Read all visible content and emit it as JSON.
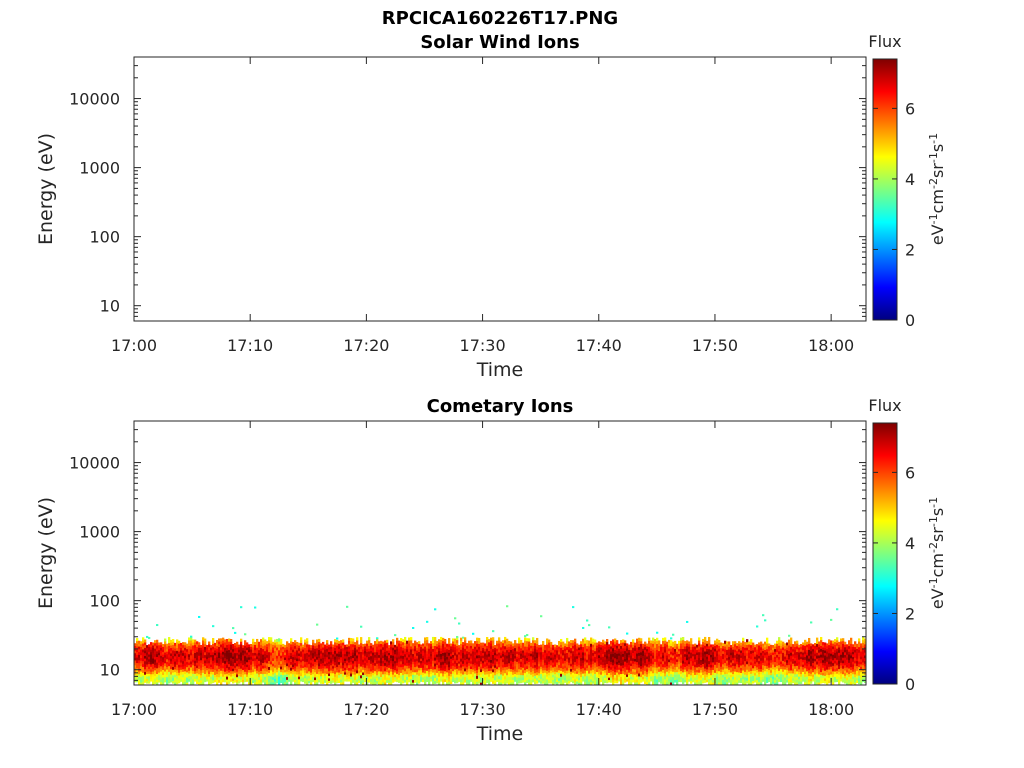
{
  "figure": {
    "title": "RPCICA160226T17.PNG"
  },
  "colormap": {
    "name": "jet",
    "stops": [
      "#00007f",
      "#0000ff",
      "#007fff",
      "#00ffff",
      "#7fff7f",
      "#ffff00",
      "#ff7f00",
      "#ff0000",
      "#7f0000"
    ]
  },
  "chart_data": [
    {
      "type": "heatmap",
      "title": "Solar Wind Ions",
      "xlabel": "Time",
      "ylabel": "Energy (eV)",
      "xlim": [
        "17:00",
        "18:03"
      ],
      "x_ticks": [
        "17:00",
        "17:10",
        "17:20",
        "17:30",
        "17:40",
        "17:50",
        "18:00"
      ],
      "ylim": [
        6,
        40000
      ],
      "yscale": "log",
      "y_ticks": [
        10,
        100,
        1000,
        10000
      ],
      "y_tick_labels": [
        "10",
        "100",
        "1000",
        "10000"
      ],
      "colorbar": {
        "title": "Flux",
        "label": "eV-1cm-2sr-1s-1",
        "range": [
          0,
          7.4
        ],
        "ticks": [
          0,
          2,
          4,
          6
        ],
        "tick_labels": [
          "0",
          "2",
          "4",
          "6"
        ]
      },
      "data": {
        "description_of_fill": "empty",
        "bands": []
      }
    },
    {
      "type": "heatmap",
      "title": "Cometary Ions",
      "xlabel": "Time",
      "ylabel": "Energy (eV)",
      "xlim": [
        "17:00",
        "18:03"
      ],
      "x_ticks": [
        "17:00",
        "17:10",
        "17:20",
        "17:30",
        "17:40",
        "17:50",
        "18:00"
      ],
      "ylim": [
        6,
        40000
      ],
      "yscale": "log",
      "y_ticks": [
        10,
        100,
        1000,
        10000
      ],
      "y_tick_labels": [
        "10",
        "100",
        "1000",
        "10000"
      ],
      "colorbar": {
        "title": "Flux",
        "label": "eV-1cm-2sr-1s-1",
        "range": [
          0,
          7.4
        ],
        "ticks": [
          0,
          2,
          4,
          6
        ],
        "tick_labels": [
          "0",
          "2",
          "4",
          "6"
        ]
      },
      "data": {
        "energy_min_eV": 6,
        "energy_max_eV": 26,
        "peak_energy_range_eV": [
          12,
          20
        ],
        "peak_flux": 6.8,
        "edge_flux": 4.2,
        "sparse_hits_energy_range_eV": [
          28,
          85
        ],
        "sparse_hits_flux": 3.2
      }
    }
  ]
}
